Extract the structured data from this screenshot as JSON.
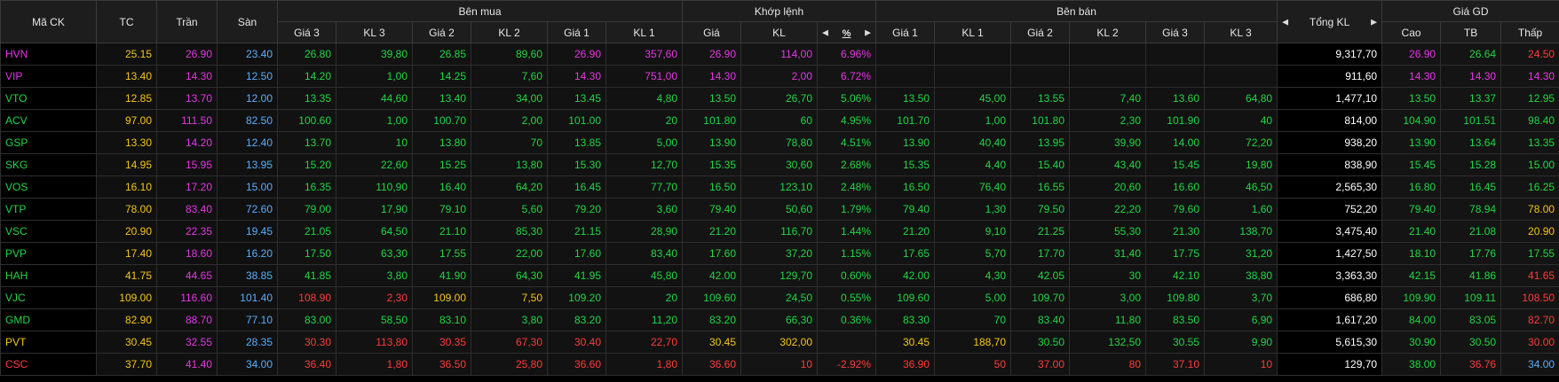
{
  "colors": {
    "ref": "#f5c518",
    "ceil": "#e437e4",
    "floor": "#5aaefc",
    "up": "#22d644",
    "down": "#ff3b3b",
    "white": "#ffffff"
  },
  "icons": {
    "left": "triangle-left-icon",
    "right": "triangle-right-icon",
    "percent": "percent-icon"
  },
  "header": {
    "symbol": "Mã CK",
    "ref": "TC",
    "ceiling": "Trần",
    "floor": "Sàn",
    "bid_group": "Bên mua",
    "match_group": "Khớp lệnh",
    "ask_group": "Bên bán",
    "total_vol": "Tổng KL",
    "stats_group": "Giá GD",
    "bid_cols": [
      "Giá 3",
      "KL 3",
      "Giá 2",
      "KL 2",
      "Giá 1",
      "KL 1"
    ],
    "match_cols": [
      "Giá",
      "KL"
    ],
    "ask_cols": [
      "Giá 1",
      "KL 1",
      "Giá 2",
      "KL 2",
      "Giá 3",
      "KL 3"
    ],
    "stats_cols": [
      "Cao",
      "TB",
      "Thấp"
    ]
  },
  "rows": [
    {
      "sym": [
        "HVN",
        "ceil"
      ],
      "ref": "25.15",
      "ceil": "26.90",
      "floor": "23.40",
      "bid": [
        [
          "26.80",
          "up"
        ],
        [
          "39,80",
          "up"
        ],
        [
          "26.85",
          "up"
        ],
        [
          "89,60",
          "up"
        ],
        [
          "26.90",
          "ceil"
        ],
        [
          "357,60",
          "ceil"
        ]
      ],
      "match": [
        [
          "26.90",
          "ceil"
        ],
        [
          "114,00",
          "ceil"
        ],
        [
          "6.96%",
          "ceil"
        ]
      ],
      "ask": [
        [
          "",
          ""
        ],
        [
          "",
          ""
        ],
        [
          "",
          ""
        ],
        [
          "",
          ""
        ],
        [
          "",
          ""
        ],
        [
          "",
          ""
        ]
      ],
      "total": "9,317,70",
      "stats": [
        [
          "26.90",
          "ceil"
        ],
        [
          "26.64",
          "up"
        ],
        [
          "24.50",
          "down"
        ]
      ]
    },
    {
      "sym": [
        "VIP",
        "ceil"
      ],
      "ref": "13.40",
      "ceil": "14.30",
      "floor": "12.50",
      "bid": [
        [
          "14.20",
          "up"
        ],
        [
          "1,00",
          "up"
        ],
        [
          "14.25",
          "up"
        ],
        [
          "7,60",
          "up"
        ],
        [
          "14.30",
          "ceil"
        ],
        [
          "751,00",
          "ceil"
        ]
      ],
      "match": [
        [
          "14.30",
          "ceil"
        ],
        [
          "2,00",
          "ceil"
        ],
        [
          "6.72%",
          "ceil"
        ]
      ],
      "ask": [
        [
          "",
          ""
        ],
        [
          "",
          ""
        ],
        [
          "",
          ""
        ],
        [
          "",
          ""
        ],
        [
          "",
          ""
        ],
        [
          "",
          ""
        ]
      ],
      "total": "911,60",
      "stats": [
        [
          "14.30",
          "ceil"
        ],
        [
          "14.30",
          "ceil"
        ],
        [
          "14.30",
          "ceil"
        ]
      ]
    },
    {
      "sym": [
        "VTO",
        "up"
      ],
      "ref": "12.85",
      "ceil": "13.70",
      "floor": "12.00",
      "bid": [
        [
          "13.35",
          "up"
        ],
        [
          "44,60",
          "up"
        ],
        [
          "13.40",
          "up"
        ],
        [
          "34,00",
          "up"
        ],
        [
          "13.45",
          "up"
        ],
        [
          "4,80",
          "up"
        ]
      ],
      "match": [
        [
          "13.50",
          "up"
        ],
        [
          "26,70",
          "up"
        ],
        [
          "5.06%",
          "up"
        ]
      ],
      "ask": [
        [
          "13.50",
          "up"
        ],
        [
          "45,00",
          "up"
        ],
        [
          "13.55",
          "up"
        ],
        [
          "7,40",
          "up"
        ],
        [
          "13.60",
          "up"
        ],
        [
          "64,80",
          "up"
        ]
      ],
      "total": "1,477,10",
      "stats": [
        [
          "13.50",
          "up"
        ],
        [
          "13.37",
          "up"
        ],
        [
          "12.95",
          "up"
        ]
      ]
    },
    {
      "sym": [
        "ACV",
        "up"
      ],
      "ref": "97.00",
      "ceil": "111.50",
      "floor": "82.50",
      "bid": [
        [
          "100.60",
          "up"
        ],
        [
          "1,00",
          "up"
        ],
        [
          "100.70",
          "up"
        ],
        [
          "2,00",
          "up"
        ],
        [
          "101.00",
          "up"
        ],
        [
          "20",
          "up"
        ]
      ],
      "match": [
        [
          "101.80",
          "up"
        ],
        [
          "60",
          "up"
        ],
        [
          "4.95%",
          "up"
        ]
      ],
      "ask": [
        [
          "101.70",
          "up"
        ],
        [
          "1,00",
          "up"
        ],
        [
          "101.80",
          "up"
        ],
        [
          "2,30",
          "up"
        ],
        [
          "101.90",
          "up"
        ],
        [
          "40",
          "up"
        ]
      ],
      "total": "814,00",
      "stats": [
        [
          "104.90",
          "up"
        ],
        [
          "101.51",
          "up"
        ],
        [
          "98.40",
          "up"
        ]
      ]
    },
    {
      "sym": [
        "GSP",
        "up"
      ],
      "ref": "13.30",
      "ceil": "14.20",
      "floor": "12.40",
      "bid": [
        [
          "13.70",
          "up"
        ],
        [
          "10",
          "up"
        ],
        [
          "13.80",
          "up"
        ],
        [
          "70",
          "up"
        ],
        [
          "13.85",
          "up"
        ],
        [
          "5,00",
          "up"
        ]
      ],
      "match": [
        [
          "13.90",
          "up"
        ],
        [
          "78,80",
          "up"
        ],
        [
          "4.51%",
          "up"
        ]
      ],
      "ask": [
        [
          "13.90",
          "up"
        ],
        [
          "40,40",
          "up"
        ],
        [
          "13.95",
          "up"
        ],
        [
          "39,90",
          "up"
        ],
        [
          "14.00",
          "up"
        ],
        [
          "72,20",
          "up"
        ]
      ],
      "total": "938,20",
      "stats": [
        [
          "13.90",
          "up"
        ],
        [
          "13.64",
          "up"
        ],
        [
          "13.35",
          "up"
        ]
      ]
    },
    {
      "sym": [
        "SKG",
        "up"
      ],
      "ref": "14.95",
      "ceil": "15.95",
      "floor": "13.95",
      "bid": [
        [
          "15.20",
          "up"
        ],
        [
          "22,60",
          "up"
        ],
        [
          "15.25",
          "up"
        ],
        [
          "13,80",
          "up"
        ],
        [
          "15.30",
          "up"
        ],
        [
          "12,70",
          "up"
        ]
      ],
      "match": [
        [
          "15.35",
          "up"
        ],
        [
          "30,60",
          "up"
        ],
        [
          "2.68%",
          "up"
        ]
      ],
      "ask": [
        [
          "15.35",
          "up"
        ],
        [
          "4,40",
          "up"
        ],
        [
          "15.40",
          "up"
        ],
        [
          "43,40",
          "up"
        ],
        [
          "15.45",
          "up"
        ],
        [
          "19,80",
          "up"
        ]
      ],
      "total": "838,90",
      "stats": [
        [
          "15.45",
          "up"
        ],
        [
          "15.28",
          "up"
        ],
        [
          "15.00",
          "up"
        ]
      ]
    },
    {
      "sym": [
        "VOS",
        "up"
      ],
      "ref": "16.10",
      "ceil": "17.20",
      "floor": "15.00",
      "bid": [
        [
          "16.35",
          "up"
        ],
        [
          "110,90",
          "up"
        ],
        [
          "16.40",
          "up"
        ],
        [
          "64,20",
          "up"
        ],
        [
          "16.45",
          "up"
        ],
        [
          "77,70",
          "up"
        ]
      ],
      "match": [
        [
          "16.50",
          "up"
        ],
        [
          "123,10",
          "up"
        ],
        [
          "2.48%",
          "up"
        ]
      ],
      "ask": [
        [
          "16.50",
          "up"
        ],
        [
          "76,40",
          "up"
        ],
        [
          "16.55",
          "up"
        ],
        [
          "20,60",
          "up"
        ],
        [
          "16.60",
          "up"
        ],
        [
          "46,50",
          "up"
        ]
      ],
      "total": "2,565,30",
      "stats": [
        [
          "16.80",
          "up"
        ],
        [
          "16.45",
          "up"
        ],
        [
          "16.25",
          "up"
        ]
      ]
    },
    {
      "sym": [
        "VTP",
        "up"
      ],
      "ref": "78.00",
      "ceil": "83.40",
      "floor": "72.60",
      "bid": [
        [
          "79.00",
          "up"
        ],
        [
          "17,90",
          "up"
        ],
        [
          "79.10",
          "up"
        ],
        [
          "5,60",
          "up"
        ],
        [
          "79.20",
          "up"
        ],
        [
          "3,60",
          "up"
        ]
      ],
      "match": [
        [
          "79.40",
          "up"
        ],
        [
          "50,60",
          "up"
        ],
        [
          "1.79%",
          "up"
        ]
      ],
      "ask": [
        [
          "79.40",
          "up"
        ],
        [
          "1,30",
          "up"
        ],
        [
          "79.50",
          "up"
        ],
        [
          "22,20",
          "up"
        ],
        [
          "79.60",
          "up"
        ],
        [
          "1,60",
          "up"
        ]
      ],
      "total": "752,20",
      "stats": [
        [
          "79.40",
          "up"
        ],
        [
          "78.94",
          "up"
        ],
        [
          "78.00",
          "ref"
        ]
      ]
    },
    {
      "sym": [
        "VSC",
        "up"
      ],
      "ref": "20.90",
      "ceil": "22.35",
      "floor": "19.45",
      "bid": [
        [
          "21.05",
          "up"
        ],
        [
          "64,50",
          "up"
        ],
        [
          "21.10",
          "up"
        ],
        [
          "85,30",
          "up"
        ],
        [
          "21.15",
          "up"
        ],
        [
          "28,90",
          "up"
        ]
      ],
      "match": [
        [
          "21.20",
          "up"
        ],
        [
          "116,70",
          "up"
        ],
        [
          "1.44%",
          "up"
        ]
      ],
      "ask": [
        [
          "21.20",
          "up"
        ],
        [
          "9,10",
          "up"
        ],
        [
          "21.25",
          "up"
        ],
        [
          "55,30",
          "up"
        ],
        [
          "21.30",
          "up"
        ],
        [
          "138,70",
          "up"
        ]
      ],
      "total": "3,475,40",
      "stats": [
        [
          "21.40",
          "up"
        ],
        [
          "21.08",
          "up"
        ],
        [
          "20.90",
          "ref"
        ]
      ]
    },
    {
      "sym": [
        "PVP",
        "up"
      ],
      "ref": "17.40",
      "ceil": "18.60",
      "floor": "16.20",
      "bid": [
        [
          "17.50",
          "up"
        ],
        [
          "63,30",
          "up"
        ],
        [
          "17.55",
          "up"
        ],
        [
          "22,00",
          "up"
        ],
        [
          "17.60",
          "up"
        ],
        [
          "83,40",
          "up"
        ]
      ],
      "match": [
        [
          "17.60",
          "up"
        ],
        [
          "37,20",
          "up"
        ],
        [
          "1.15%",
          "up"
        ]
      ],
      "ask": [
        [
          "17.65",
          "up"
        ],
        [
          "5,70",
          "up"
        ],
        [
          "17.70",
          "up"
        ],
        [
          "31,40",
          "up"
        ],
        [
          "17.75",
          "up"
        ],
        [
          "31,20",
          "up"
        ]
      ],
      "total": "1,427,50",
      "stats": [
        [
          "18.10",
          "up"
        ],
        [
          "17.76",
          "up"
        ],
        [
          "17.55",
          "up"
        ]
      ]
    },
    {
      "sym": [
        "HAH",
        "up"
      ],
      "ref": "41.75",
      "ceil": "44.65",
      "floor": "38.85",
      "bid": [
        [
          "41.85",
          "up"
        ],
        [
          "3,80",
          "up"
        ],
        [
          "41.90",
          "up"
        ],
        [
          "64,30",
          "up"
        ],
        [
          "41.95",
          "up"
        ],
        [
          "45,80",
          "up"
        ]
      ],
      "match": [
        [
          "42.00",
          "up"
        ],
        [
          "129,70",
          "up"
        ],
        [
          "0.60%",
          "up"
        ]
      ],
      "ask": [
        [
          "42.00",
          "up"
        ],
        [
          "4,30",
          "up"
        ],
        [
          "42.05",
          "up"
        ],
        [
          "30",
          "up"
        ],
        [
          "42.10",
          "up"
        ],
        [
          "38,80",
          "up"
        ]
      ],
      "total": "3,363,30",
      "stats": [
        [
          "42.15",
          "up"
        ],
        [
          "41.86",
          "up"
        ],
        [
          "41.65",
          "down"
        ]
      ]
    },
    {
      "sym": [
        "VJC",
        "up"
      ],
      "ref": "109.00",
      "ceil": "116.60",
      "floor": "101.40",
      "bid": [
        [
          "108.90",
          "down"
        ],
        [
          "2,30",
          "down"
        ],
        [
          "109.00",
          "ref"
        ],
        [
          "7,50",
          "ref"
        ],
        [
          "109.20",
          "up"
        ],
        [
          "20",
          "up"
        ]
      ],
      "match": [
        [
          "109.60",
          "up"
        ],
        [
          "24,50",
          "up"
        ],
        [
          "0.55%",
          "up"
        ]
      ],
      "ask": [
        [
          "109.60",
          "up"
        ],
        [
          "5,00",
          "up"
        ],
        [
          "109.70",
          "up"
        ],
        [
          "3,00",
          "up"
        ],
        [
          "109.80",
          "up"
        ],
        [
          "3,70",
          "up"
        ]
      ],
      "total": "686,80",
      "stats": [
        [
          "109.90",
          "up"
        ],
        [
          "109.11",
          "up"
        ],
        [
          "108.50",
          "down"
        ]
      ]
    },
    {
      "sym": [
        "GMD",
        "up"
      ],
      "ref": "82.90",
      "ceil": "88.70",
      "floor": "77.10",
      "bid": [
        [
          "83.00",
          "up"
        ],
        [
          "58,50",
          "up"
        ],
        [
          "83.10",
          "up"
        ],
        [
          "3,80",
          "up"
        ],
        [
          "83.20",
          "up"
        ],
        [
          "11,20",
          "up"
        ]
      ],
      "match": [
        [
          "83.20",
          "up"
        ],
        [
          "66,30",
          "up"
        ],
        [
          "0.36%",
          "up"
        ]
      ],
      "ask": [
        [
          "83.30",
          "up"
        ],
        [
          "70",
          "up"
        ],
        [
          "83.40",
          "up"
        ],
        [
          "11,80",
          "up"
        ],
        [
          "83.50",
          "up"
        ],
        [
          "6,90",
          "up"
        ]
      ],
      "total": "1,617,20",
      "stats": [
        [
          "84.00",
          "up"
        ],
        [
          "83.05",
          "up"
        ],
        [
          "82.70",
          "down"
        ]
      ]
    },
    {
      "sym": [
        "PVT",
        "ref"
      ],
      "ref": "30.45",
      "ceil": "32.55",
      "floor": "28.35",
      "bid": [
        [
          "30.30",
          "down"
        ],
        [
          "113,80",
          "down"
        ],
        [
          "30.35",
          "down"
        ],
        [
          "67,30",
          "down"
        ],
        [
          "30.40",
          "down"
        ],
        [
          "22,70",
          "down"
        ]
      ],
      "match": [
        [
          "30.45",
          "ref"
        ],
        [
          "302,00",
          "ref"
        ],
        [
          "",
          ""
        ]
      ],
      "ask": [
        [
          "30.45",
          "ref"
        ],
        [
          "188,70",
          "ref"
        ],
        [
          "30.50",
          "up"
        ],
        [
          "132,50",
          "up"
        ],
        [
          "30.55",
          "up"
        ],
        [
          "9,90",
          "up"
        ]
      ],
      "total": "5,615,30",
      "stats": [
        [
          "30.90",
          "up"
        ],
        [
          "30.50",
          "up"
        ],
        [
          "30.00",
          "down"
        ]
      ]
    },
    {
      "sym": [
        "CSC",
        "down"
      ],
      "ref": "37.70",
      "ceil": "41.40",
      "floor": "34.00",
      "bid": [
        [
          "36.40",
          "down"
        ],
        [
          "1,80",
          "down"
        ],
        [
          "36.50",
          "down"
        ],
        [
          "25,80",
          "down"
        ],
        [
          "36.60",
          "down"
        ],
        [
          "1,80",
          "down"
        ]
      ],
      "match": [
        [
          "36.60",
          "down"
        ],
        [
          "10",
          "down"
        ],
        [
          "-2.92%",
          "down"
        ]
      ],
      "ask": [
        [
          "36.90",
          "down"
        ],
        [
          "50",
          "down"
        ],
        [
          "37.00",
          "down"
        ],
        [
          "80",
          "down"
        ],
        [
          "37.10",
          "down"
        ],
        [
          "10",
          "down"
        ]
      ],
      "total": "129,70",
      "stats": [
        [
          "38.00",
          "up"
        ],
        [
          "36.76",
          "down"
        ],
        [
          "34.00",
          "floor"
        ]
      ]
    }
  ]
}
